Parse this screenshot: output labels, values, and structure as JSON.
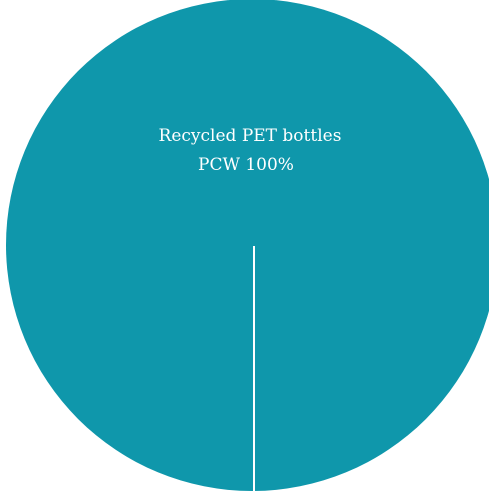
{
  "chart_data": {
    "type": "pie",
    "slices": [
      {
        "label_line1": "Recycled PET bottles",
        "label_line2": "PCW 100%",
        "value": 100,
        "color": "#0f97ab"
      }
    ],
    "separator_color": "#ffffff"
  }
}
